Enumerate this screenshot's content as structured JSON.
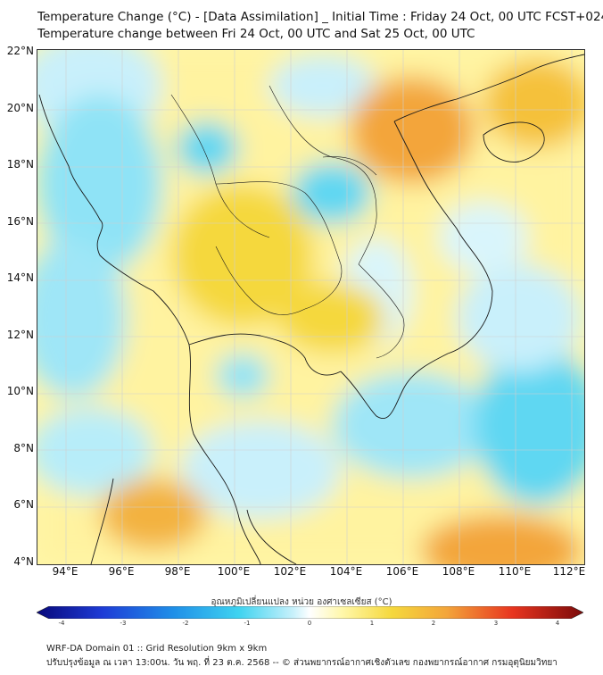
{
  "header": {
    "title_line1": "Temperature Change (°C) - [Data Assimilation] _ Initial Time : Friday 24 Oct, 00 UTC FCST+024",
    "title_line2": "Temperature change between Fri 24 Oct, 00 UTC and Sat 25 Oct, 00 UTC"
  },
  "map": {
    "lat_labels": [
      "22°N",
      "20°N",
      "18°N",
      "16°N",
      "14°N",
      "12°N",
      "10°N",
      "8°N",
      "6°N",
      "4°N"
    ],
    "lon_labels": [
      "94°E",
      "96°E",
      "98°E",
      "100°E",
      "102°E",
      "104°E",
      "106°E",
      "108°E",
      "110°E",
      "112°E"
    ],
    "colors": {
      "warm_light": "#fff7a8",
      "warm": "#f5d83c",
      "orange": "#f3a53a",
      "cool_light": "#c9f0fb",
      "cool": "#5fd7f2",
      "cool_dark": "#39c3ea",
      "border": "#1a1a1a"
    }
  },
  "colorbar": {
    "title": "อุณหภูมิเปลี่ยนแปลง หน่วย องศาเซลเซียส (°C)",
    "ticks": [
      "-4",
      "-3",
      "-2",
      "-1",
      "0",
      "1",
      "2",
      "3",
      "4"
    ],
    "min": -4,
    "max": 4
  },
  "footer": {
    "line1": "WRF-DA Domain 01 :: Grid Resolution 9km x 9km",
    "line2": "ปรับปรุงข้อมูล ณ เวลา 13:00น. วัน พฤ. ที่ 23 ต.ค. 2568 -- © ส่วนพยากรณ์อากาศเชิงตัวเลข กองพยากรณ์อากาศ กรมอุตุนิยมวิทยา"
  }
}
